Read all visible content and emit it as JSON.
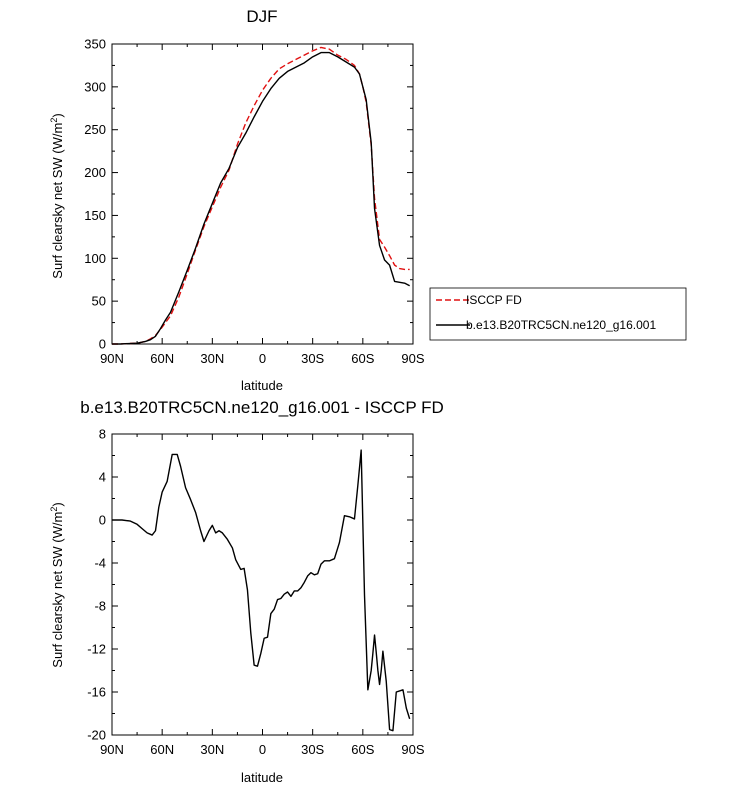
{
  "chart_data": [
    {
      "type": "line",
      "title": "DJF",
      "xlabel": "latitude",
      "ylabel": "Surf clearsky net SW (W/m",
      "ylabel_sup": "2",
      "ylabel_tail": ")",
      "xlim": [
        90,
        -90
      ],
      "ylim": [
        0,
        350
      ],
      "xticks": [
        90,
        60,
        30,
        0,
        -30,
        -60,
        -90
      ],
      "xtick_labels": [
        "90N",
        "60N",
        "30N",
        "0",
        "30S",
        "60S",
        "90S"
      ],
      "yticks": [
        0,
        50,
        100,
        150,
        200,
        250,
        300,
        350
      ],
      "ytick_labels": [
        "0",
        "50",
        "100",
        "150",
        "200",
        "250",
        "300",
        "350"
      ],
      "grid": false,
      "legend_position": "right",
      "series": [
        {
          "name": "ISCCP FD",
          "color": "#e01010",
          "dash": true,
          "x": [
            90,
            85,
            80,
            75,
            70,
            67,
            64,
            61,
            58,
            55,
            50,
            45,
            40,
            35,
            30,
            25,
            20,
            15,
            10,
            5,
            0,
            -5,
            -10,
            -15,
            -20,
            -25,
            -30,
            -35,
            -40,
            -45,
            -50,
            -55,
            -58,
            -60,
            -62,
            -65,
            -67,
            -70,
            -73,
            -76,
            -79,
            -82,
            -85,
            -88
          ],
          "y": [
            0,
            0,
            0.5,
            1,
            3,
            6,
            10,
            17,
            25,
            33,
            55,
            82,
            110,
            137,
            160,
            183,
            203,
            233,
            258,
            278,
            296,
            310,
            321,
            327,
            332,
            337,
            342,
            346,
            344,
            337,
            332,
            325,
            315,
            300,
            282,
            232,
            170,
            122,
            113,
            103,
            92,
            88,
            87,
            87
          ]
        },
        {
          "name": "b.e13.B20TRC5CN.ne120_g16.001",
          "color": "#000000",
          "dash": false,
          "x": [
            90,
            85,
            80,
            75,
            70,
            67,
            64,
            61,
            58,
            55,
            50,
            45,
            40,
            35,
            30,
            25,
            20,
            15,
            10,
            5,
            0,
            -5,
            -10,
            -15,
            -20,
            -25,
            -30,
            -35,
            -40,
            -45,
            -50,
            -55,
            -58,
            -60,
            -62,
            -65,
            -67,
            -70,
            -73,
            -76,
            -79,
            -82,
            -85,
            -88
          ],
          "y": [
            0,
            0,
            0.5,
            1,
            3,
            5,
            9,
            18,
            28,
            37,
            61,
            86,
            112,
            140,
            164,
            188,
            205,
            229,
            246,
            265,
            283,
            298,
            310,
            318,
            323,
            328,
            335,
            340,
            340,
            335,
            329,
            323,
            315,
            300,
            285,
            235,
            158,
            115,
            98,
            92,
            73,
            72,
            71,
            68
          ]
        }
      ]
    },
    {
      "type": "line",
      "title": "b.e13.B20TRC5CN.ne120_g16.001 - ISCCP FD",
      "xlabel": "latitude",
      "ylabel": "Surf clearsky net SW (W/m",
      "ylabel_sup": "2",
      "ylabel_tail": ")",
      "xlim": [
        90,
        -90
      ],
      "ylim": [
        -20,
        8
      ],
      "xticks": [
        90,
        60,
        30,
        0,
        -30,
        -60,
        -90
      ],
      "xtick_labels": [
        "90N",
        "60N",
        "30N",
        "0",
        "30S",
        "60S",
        "90S"
      ],
      "yticks": [
        -20,
        -16,
        -12,
        -8,
        -4,
        0,
        4,
        8
      ],
      "ytick_labels": [
        "-20",
        "-16",
        "-12",
        "-8",
        "-4",
        "0",
        "4",
        "8"
      ],
      "grid": false,
      "series": [
        {
          "name": "",
          "color": "#000000",
          "dash": false,
          "x": [
            90,
            84,
            79,
            75,
            72,
            69,
            66,
            64,
            62,
            60,
            57,
            54,
            51,
            49,
            46,
            43,
            40,
            37,
            35,
            32,
            30,
            28,
            26,
            24,
            21,
            18,
            16,
            13,
            11,
            9,
            7,
            5,
            3,
            1,
            -1,
            -3,
            -5,
            -7,
            -9,
            -11,
            -13,
            -15,
            -17,
            -19,
            -21,
            -23,
            -25,
            -27,
            -29,
            -31,
            -33,
            -35,
            -37,
            -40,
            -43,
            -46,
            -49,
            -52,
            -55,
            -57,
            -59,
            -61,
            -63,
            -65,
            -66,
            -67,
            -68,
            -69,
            -70,
            -71,
            -72,
            -74,
            -76,
            -78,
            -80,
            -82,
            -84,
            -86,
            -88
          ],
          "y": [
            0,
            0,
            -0.1,
            -0.4,
            -0.8,
            -1.2,
            -1.4,
            -1,
            1.2,
            2.6,
            3.6,
            6.1,
            6.1,
            5,
            3,
            1.9,
            0.7,
            -1,
            -2,
            -1,
            -0.5,
            -1.2,
            -1,
            -1.2,
            -1.8,
            -2.6,
            -3.7,
            -4.6,
            -4.5,
            -6.5,
            -10.5,
            -13.5,
            -13.6,
            -12.4,
            -11,
            -10.9,
            -8.7,
            -8.3,
            -7.4,
            -7.3,
            -6.9,
            -6.7,
            -7.1,
            -6.6,
            -6.6,
            -6.3,
            -5.8,
            -5.2,
            -4.9,
            -5.1,
            -5,
            -4.1,
            -3.8,
            -3.8,
            -3.6,
            -2.1,
            0.4,
            0.3,
            0.1,
            3.2,
            6.5,
            -7,
            -15.8,
            -14,
            -12.4,
            -10.7,
            -12.3,
            -14,
            -15.3,
            -14,
            -12.2,
            -15,
            -19.5,
            -19.6,
            -16,
            -15.9,
            -15.8,
            -17.5,
            -18.5
          ]
        }
      ]
    }
  ]
}
